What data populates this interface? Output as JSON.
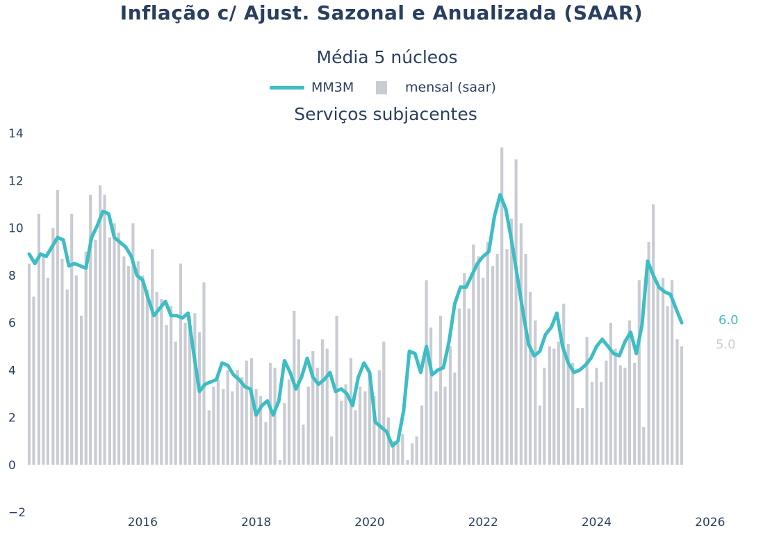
{
  "title": "Inflação c/ Ajust. Sazonal e Anualizada (SAAR)",
  "subtitle": "Média 5 núcleos",
  "subtitle2": "Serviços subjacentes",
  "legend": {
    "line_label": "MM3M",
    "bar_label": "mensal (saar)"
  },
  "colors": {
    "line": "#3dbdc4",
    "bars": "#c9ccd3",
    "text": "#2a3f5f",
    "last_bar_label": "#c9ccd3"
  },
  "end_labels": {
    "line": "6.0",
    "bar": "5.0"
  },
  "chart_data": {
    "type": "bar",
    "x_ticks": [
      2016,
      2018,
      2020,
      2022,
      2024,
      2026
    ],
    "y_ticks": [
      -2,
      0,
      2,
      4,
      6,
      8,
      10,
      12,
      14
    ],
    "xlim": [
      2014.0,
      2026.1
    ],
    "ylim": [
      -2,
      14
    ],
    "grid": false,
    "legend_position": "top-center",
    "series": [
      {
        "name": "MM3M",
        "type": "line",
        "x": [
          2014.0,
          2014.1,
          2014.2,
          2014.3,
          2014.4,
          2014.5,
          2014.6,
          2014.7,
          2014.8,
          2014.9,
          2015.0,
          2015.1,
          2015.2,
          2015.3,
          2015.4,
          2015.5,
          2015.6,
          2015.7,
          2015.8,
          2015.9,
          2016.0,
          2016.1,
          2016.2,
          2016.3,
          2016.4,
          2016.5,
          2016.6,
          2016.7,
          2016.8,
          2016.9,
          2017.0,
          2017.1,
          2017.2,
          2017.3,
          2017.4,
          2017.5,
          2017.6,
          2017.7,
          2017.8,
          2017.9,
          2018.0,
          2018.1,
          2018.2,
          2018.3,
          2018.4,
          2018.5,
          2018.6,
          2018.7,
          2018.8,
          2018.9,
          2019.0,
          2019.1,
          2019.2,
          2019.3,
          2019.4,
          2019.5,
          2019.6,
          2019.7,
          2019.8,
          2019.9,
          2020.0,
          2020.1,
          2020.2,
          2020.3,
          2020.4,
          2020.5,
          2020.6,
          2020.7,
          2020.8,
          2020.9,
          2021.0,
          2021.1,
          2021.2,
          2021.3,
          2021.4,
          2021.5,
          2021.6,
          2021.7,
          2021.8,
          2021.9,
          2022.0,
          2022.1,
          2022.2,
          2022.3,
          2022.4,
          2022.5,
          2022.6,
          2022.7,
          2022.8,
          2022.9,
          2023.0,
          2023.1,
          2023.2,
          2023.3,
          2023.4,
          2023.5,
          2023.6,
          2023.7,
          2023.8,
          2023.9,
          2024.0,
          2024.1,
          2024.2,
          2024.3,
          2024.4,
          2024.5,
          2024.6,
          2024.7,
          2024.8,
          2024.9,
          2025.0,
          2025.1,
          2025.2,
          2025.3,
          2025.4,
          2025.5
        ],
        "values": [
          8.9,
          8.5,
          8.9,
          8.8,
          9.2,
          9.6,
          9.5,
          8.4,
          8.5,
          8.4,
          8.3,
          9.6,
          10.1,
          10.7,
          10.6,
          9.6,
          9.4,
          9.2,
          8.8,
          8.0,
          7.8,
          7.0,
          6.3,
          6.6,
          6.9,
          6.3,
          6.3,
          6.2,
          6.4,
          4.7,
          3.1,
          3.4,
          3.5,
          3.6,
          4.3,
          4.2,
          3.8,
          3.6,
          3.3,
          3.2,
          2.1,
          2.5,
          2.7,
          2.1,
          2.7,
          4.4,
          3.9,
          3.2,
          3.7,
          4.5,
          3.7,
          3.4,
          3.6,
          3.9,
          3.1,
          3.2,
          3.0,
          2.5,
          3.7,
          4.3,
          3.9,
          1.8,
          1.6,
          1.4,
          0.8,
          1.0,
          2.3,
          4.8,
          4.7,
          3.9,
          5.0,
          3.8,
          4.0,
          4.1,
          5.2,
          6.8,
          7.5,
          7.5,
          8.0,
          8.5,
          8.8,
          9.0,
          10.5,
          11.4,
          10.8,
          9.5,
          8.0,
          6.5,
          5.1,
          4.6,
          4.8,
          5.5,
          5.8,
          6.4,
          5.0,
          4.3,
          3.9,
          4.0,
          4.2,
          4.5,
          5.0,
          5.3,
          5.0,
          4.7,
          4.6,
          5.2,
          5.6,
          4.7,
          5.9,
          8.6,
          8.0,
          7.5,
          7.3,
          7.2,
          6.6,
          6.0
        ]
      },
      {
        "name": "mensal (saar)",
        "type": "bar",
        "x": [
          2014.0,
          2014.08,
          2014.17,
          2014.25,
          2014.33,
          2014.42,
          2014.5,
          2014.58,
          2014.67,
          2014.75,
          2014.83,
          2014.92,
          2015.0,
          2015.08,
          2015.17,
          2015.25,
          2015.33,
          2015.42,
          2015.5,
          2015.58,
          2015.67,
          2015.75,
          2015.83,
          2015.92,
          2016.0,
          2016.08,
          2016.17,
          2016.25,
          2016.33,
          2016.42,
          2016.5,
          2016.58,
          2016.67,
          2016.75,
          2016.83,
          2016.92,
          2017.0,
          2017.08,
          2017.17,
          2017.25,
          2017.33,
          2017.42,
          2017.5,
          2017.58,
          2017.67,
          2017.75,
          2017.83,
          2017.92,
          2018.0,
          2018.08,
          2018.17,
          2018.25,
          2018.33,
          2018.42,
          2018.5,
          2018.58,
          2018.67,
          2018.75,
          2018.83,
          2018.92,
          2019.0,
          2019.08,
          2019.17,
          2019.25,
          2019.33,
          2019.42,
          2019.5,
          2019.58,
          2019.67,
          2019.75,
          2019.83,
          2019.92,
          2020.0,
          2020.08,
          2020.17,
          2020.25,
          2020.33,
          2020.42,
          2020.5,
          2020.58,
          2020.67,
          2020.75,
          2020.83,
          2020.92,
          2021.0,
          2021.08,
          2021.17,
          2021.25,
          2021.33,
          2021.42,
          2021.5,
          2021.58,
          2021.67,
          2021.75,
          2021.83,
          2021.92,
          2022.0,
          2022.08,
          2022.17,
          2022.25,
          2022.33,
          2022.42,
          2022.5,
          2022.58,
          2022.67,
          2022.75,
          2022.83,
          2022.92,
          2023.0,
          2023.08,
          2023.17,
          2023.25,
          2023.33,
          2023.42,
          2023.5,
          2023.58,
          2023.67,
          2023.75,
          2023.83,
          2023.92,
          2024.0,
          2024.08,
          2024.17,
          2024.25,
          2024.33,
          2024.42,
          2024.5,
          2024.58,
          2024.67,
          2024.75,
          2024.83,
          2024.92,
          2025.0,
          2025.08,
          2025.17,
          2025.25,
          2025.33,
          2025.42,
          2025.5
        ],
        "values": [
          8.5,
          7.1,
          10.6,
          8.9,
          7.9,
          10.0,
          11.6,
          8.7,
          7.4,
          10.6,
          8.0,
          6.3,
          9.0,
          11.4,
          9.5,
          11.8,
          11.4,
          9.6,
          10.2,
          9.8,
          8.8,
          8.4,
          10.2,
          8.6,
          8.0,
          7.4,
          9.1,
          7.3,
          7.0,
          5.9,
          6.7,
          5.2,
          8.5,
          6.0,
          6.3,
          6.4,
          5.6,
          7.7,
          2.3,
          3.3,
          3.6,
          3.2,
          4.0,
          3.1,
          4.0,
          3.7,
          4.4,
          4.5,
          3.2,
          2.9,
          1.8,
          4.3,
          4.1,
          0.2,
          2.6,
          3.6,
          6.5,
          5.3,
          1.7,
          3.3,
          4.8,
          4.1,
          5.3,
          4.9,
          1.2,
          6.3,
          2.7,
          3.4,
          4.5,
          2.3,
          3.3,
          3.1,
          3.9,
          2.9,
          4.0,
          5.2,
          2.0,
          1.0,
          0.9,
          1.3,
          0.2,
          0.9,
          1.2,
          2.5,
          7.8,
          5.8,
          3.1,
          6.3,
          3.3,
          5.0,
          3.9,
          6.6,
          8.1,
          6.6,
          9.3,
          8.8,
          7.9,
          9.4,
          8.4,
          8.9,
          13.4,
          9.1,
          10.4,
          12.9,
          10.2,
          8.9,
          7.3,
          6.1,
          2.5,
          4.1,
          5.0,
          4.9,
          5.2,
          6.8,
          5.1,
          4.3,
          2.4,
          2.4,
          5.4,
          3.5,
          4.1,
          3.5,
          4.4,
          6.0,
          4.9,
          4.2,
          4.1,
          6.1,
          4.3,
          7.8,
          1.6,
          9.4,
          11.0,
          7.5,
          7.9,
          6.7,
          7.8,
          5.3,
          5.0
        ]
      }
    ]
  }
}
